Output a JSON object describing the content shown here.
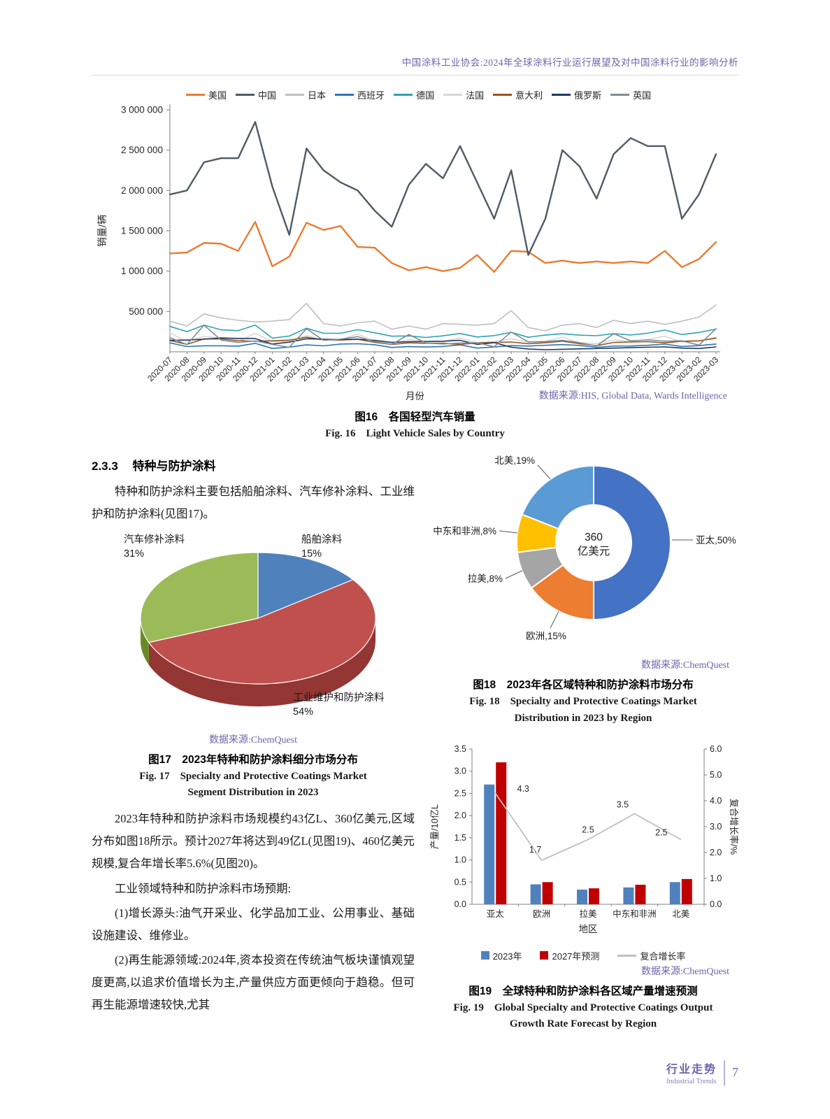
{
  "header": {
    "title": "中国涂料工业协会:2024年全球涂料行业运行展望及对中国涂料行业的影响分析"
  },
  "section": {
    "number": "2.3.3",
    "title": "特种与防护涂料"
  },
  "paragraphs": {
    "intro": "特种和防护涂料主要包括船舶涂料、汽车修补涂料、工业维护和防护涂料(见图17)。",
    "p1": "2023年特种和防护涂料市场规模约43亿L、360亿美元,区域分布如图18所示。预计2027年将达到49亿L(见图19)、460亿美元规模,复合年增长率5.6%(见图20)。",
    "p2": "工业领域特种和防护涂料市场预期:",
    "p3": "(1)增长源头:油气开采业、化学品加工业、公用事业、基础设施建设、维修业。",
    "p4": "(2)再生能源领域:2024年,资本投资在传统油气板块谨慎观望度更高,以追求价值增长为主,产量供应方面更倾向于趋稳。但可再生能源增速较快,尤其"
  },
  "figures": {
    "fig16": {
      "caption_zh": "图16　各国轻型汽车销量",
      "caption_en": "Fig. 16　Light Vehicle Sales by Country",
      "source": "数据来源:HIS, Global Data, Wards Intelligence"
    },
    "fig17": {
      "caption_zh": "图17　2023年特种和防护涂料细分市场分布",
      "caption_en": "Fig. 17　Specialty and Protective Coatings Market\nSegment Distribution in 2023",
      "source": "数据来源:ChemQuest"
    },
    "fig18": {
      "caption_zh": "图18　2023年各区域特种和防护涂料市场分布",
      "caption_en": "Fig. 18　Specialty and Protective Coatings Market\nDistribution in 2023 by Region",
      "source": "数据来源:ChemQuest"
    },
    "fig19": {
      "caption_zh": "图19　全球特种和防护涂料各区域产量增速预测",
      "caption_en": "Fig. 19　Global Specialty and Protective Coatings Output\nGrowth Rate Forecast by Region",
      "source": "数据来源:ChemQuest"
    }
  },
  "footer": {
    "zh": "行业走势",
    "en": "Industrial Trends",
    "page": "7"
  },
  "chart_data": [
    {
      "id": "fig16",
      "type": "line",
      "title": "各国轻型汽车销量",
      "ylabel": "销量/辆",
      "xlabel": "月份",
      "ylim": [
        0,
        3000000
      ],
      "ytick_step": 500000,
      "legend_position": "top",
      "grid": false,
      "x": [
        "2020-07",
        "2020-08",
        "2020-09",
        "2020-10",
        "2020-11",
        "2020-12",
        "2021-01",
        "2021-02",
        "2021-03",
        "2021-04",
        "2021-05",
        "2021-06",
        "2021-07",
        "2021-08",
        "2021-09",
        "2021-10",
        "2021-11",
        "2021-12",
        "2022-01",
        "2022-02",
        "2022-03",
        "2022-04",
        "2022-05",
        "2022-06",
        "2022-07",
        "2022-08",
        "2022-09",
        "2022-10",
        "2022-11",
        "2022-12",
        "2023-01",
        "2023-02",
        "2023-03"
      ],
      "series": [
        {
          "name": "美国",
          "color": "#E97C30",
          "values": [
            1220000,
            1230000,
            1350000,
            1340000,
            1250000,
            1610000,
            1060000,
            1180000,
            1600000,
            1510000,
            1560000,
            1300000,
            1290000,
            1100000,
            1010000,
            1050000,
            1000000,
            1040000,
            1200000,
            990000,
            1250000,
            1240000,
            1100000,
            1130000,
            1100000,
            1120000,
            1100000,
            1120000,
            1100000,
            1250000,
            1050000,
            1150000,
            1360000
          ]
        },
        {
          "name": "中国",
          "color": "#4E5B66",
          "values": [
            1950000,
            2000000,
            2350000,
            2400000,
            2400000,
            2850000,
            2050000,
            1450000,
            2520000,
            2250000,
            2100000,
            2000000,
            1750000,
            1550000,
            2070000,
            2330000,
            2150000,
            2550000,
            2100000,
            1650000,
            2250000,
            1200000,
            1650000,
            2500000,
            2300000,
            1900000,
            2450000,
            2650000,
            2550000,
            2550000,
            1650000,
            1950000,
            2450000
          ]
        },
        {
          "name": "日本",
          "color": "#BFBFBF",
          "values": [
            380000,
            320000,
            470000,
            420000,
            390000,
            370000,
            380000,
            400000,
            600000,
            350000,
            320000,
            360000,
            380000,
            280000,
            320000,
            280000,
            350000,
            340000,
            330000,
            350000,
            510000,
            300000,
            260000,
            330000,
            350000,
            300000,
            390000,
            350000,
            380000,
            340000,
            380000,
            430000,
            580000
          ]
        },
        {
          "name": "西班牙",
          "color": "#2E75B6",
          "values": [
            110000,
            65000,
            75000,
            75000,
            70000,
            105000,
            42000,
            58000,
            86000,
            74000,
            96000,
            100000,
            88000,
            54000,
            64000,
            59000,
            66000,
            86000,
            46000,
            60000,
            76000,
            71000,
            81000,
            89000,
            79000,
            56000,
            71000,
            72000,
            81000,
            95000,
            66000,
            76000,
            96000
          ]
        },
        {
          "name": "德国",
          "color": "#2FA3B0",
          "values": [
            315000,
            250000,
            330000,
            272000,
            262000,
            330000,
            170000,
            195000,
            292000,
            230000,
            230000,
            274000,
            236000,
            193000,
            197000,
            178000,
            198000,
            227000,
            184000,
            200000,
            241000,
            180000,
            207000,
            224000,
            206000,
            199000,
            225000,
            208000,
            231000,
            270000,
            213000,
            240000,
            281000
          ]
        },
        {
          "name": "法国",
          "color": "#D8D8D8",
          "values": [
            232000,
            128000,
            191000,
            171000,
            126000,
            230000,
            126000,
            132000,
            200000,
            151000,
            150000,
            219000,
            131000,
            99000,
            152000,
            133000,
            129000,
            172000,
            112000,
            127000,
            162000,
            122000,
            131000,
            181000,
            114000,
            102000,
            146000,
            132000,
            152000,
            193000,
            122000,
            133000,
            182000
          ]
        },
        {
          "name": "意大利",
          "color": "#9A5518",
          "values": [
            140000,
            92000,
            160000,
            159000,
            139000,
            130000,
            136000,
            145000,
            180000,
            147000,
            146000,
            155000,
            116000,
            92000,
            111000,
            106000,
            107000,
            92000,
            110000,
            115000,
            121000,
            101000,
            112000,
            132000,
            101000,
            76000,
            116000,
            121000,
            126000,
            111000,
            131000,
            136000,
            168000
          ]
        },
        {
          "name": "俄罗斯",
          "color": "#203864",
          "values": [
            142000,
            146000,
            156000,
            172000,
            166000,
            164000,
            96000,
            120000,
            161000,
            156000,
            151000,
            156000,
            141000,
            116000,
            126000,
            127000,
            131000,
            142000,
            92000,
            114000,
            56000,
            34000,
            26000,
            31000,
            36000,
            41000,
            46000,
            51000,
            56000,
            61000,
            46000,
            41000,
            61000
          ]
        },
        {
          "name": "英国",
          "color": "#7F8C96",
          "values": [
            175000,
            90000,
            330000,
            145000,
            115000,
            135000,
            91000,
            56000,
            285000,
            142000,
            157000,
            187000,
            126000,
            92000,
            215000,
            108000,
            97000,
            108000,
            112000,
            62000,
            245000,
            122000,
            127000,
            142000,
            112000,
            72000,
            225000,
            136000,
            147000,
            132000,
            136000,
            82000,
            287000
          ]
        }
      ]
    },
    {
      "id": "fig17",
      "type": "pie",
      "pie3d": true,
      "title": "2023年特种和防护涂料细分市场分布",
      "start_angle_deg": -90,
      "clockwise": true,
      "slices": [
        {
          "label": "船舶涂料",
          "pct": 15,
          "color": "#4F81BD"
        },
        {
          "label": "工业维护和防护涂料",
          "pct": 54,
          "color": "#C0504D",
          "side_color": "#943634"
        },
        {
          "label": "汽车修补涂料",
          "pct": 31,
          "color": "#9BBB59"
        }
      ]
    },
    {
      "id": "fig18",
      "type": "pie",
      "subtype": "donut",
      "title": "2023年各区域特种和防护涂料市场分布",
      "center_value": "360",
      "center_unit": "亿美元",
      "slices": [
        {
          "label": "亚太",
          "pct": 50,
          "color": "#4472C4"
        },
        {
          "label": "欧洲",
          "pct": 15,
          "color": "#ED7D31"
        },
        {
          "label": "拉美",
          "pct": 8,
          "color": "#A5A5A5"
        },
        {
          "label": "中东和非洲",
          "pct": 8,
          "color": "#FFC000"
        },
        {
          "label": "北美",
          "pct": 19,
          "color": "#5B9BD5"
        }
      ]
    },
    {
      "id": "fig19",
      "type": "bar",
      "subtype": "bar+line",
      "title": "全球特种和防护涂料各区域产量增速预测",
      "categories": [
        "亚太",
        "欧洲",
        "拉美",
        "中东和非洲",
        "北美"
      ],
      "xlabel": "地区",
      "ylabel_left": "产量/10亿L",
      "ylim_left": [
        0,
        3.5
      ],
      "ytick_step_left": 0.5,
      "ylabel_right": "复合增长率/%",
      "ylim_right": [
        0,
        6.0
      ],
      "ytick_step_right": 1.0,
      "series": [
        {
          "name": "2023年",
          "type": "bar",
          "axis": "left",
          "color": "#4F81BD",
          "values": [
            2.7,
            0.45,
            0.33,
            0.38,
            0.5
          ]
        },
        {
          "name": "2027年预测",
          "type": "bar",
          "axis": "left",
          "color": "#C00000",
          "values": [
            3.2,
            0.5,
            0.36,
            0.44,
            0.57
          ]
        },
        {
          "name": "复合增长率",
          "type": "line",
          "axis": "right",
          "color": "#BFBFBF",
          "values": [
            4.3,
            1.7,
            2.5,
            3.5,
            2.5
          ]
        }
      ],
      "legend_position": "bottom"
    }
  ]
}
